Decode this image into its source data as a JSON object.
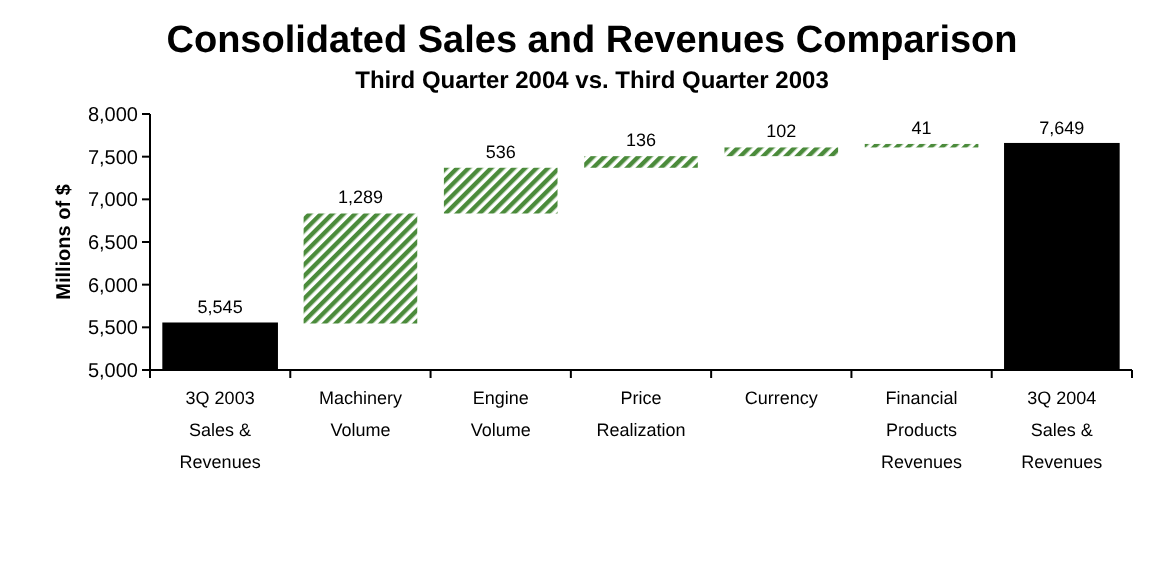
{
  "chart_data": {
    "type": "bar",
    "title": "Consolidated Sales and Revenues Comparison",
    "subtitle": "Third Quarter 2004 vs. Third Quarter 2003",
    "ylabel": "Millions of $",
    "categories": [
      "3Q 2003 Sales & Revenues",
      "Machinery Volume",
      "Engine Volume",
      "Price Realization",
      "Currency",
      "Financial Products Revenues",
      "3Q 2004 Sales & Revenues"
    ],
    "values": [
      5545,
      1289,
      536,
      136,
      102,
      41,
      7649
    ],
    "base": [
      null,
      5545,
      6834,
      7370,
      7506,
      7608,
      null
    ],
    "colors": [
      "#000000",
      "#4b8b3b",
      "#4b8b3b",
      "#4b8b3b",
      "#4b8b3b",
      "#4b8b3b",
      "#000000"
    ],
    "ylim": [
      5000,
      8000
    ],
    "yticks": [
      {
        "value": 5000,
        "label": "5,000"
      },
      {
        "value": 5500,
        "label": "5,500"
      },
      {
        "value": 6000,
        "label": "6,000"
      },
      {
        "value": 6500,
        "label": "6,500"
      },
      {
        "value": 7000,
        "label": "7,000"
      },
      {
        "value": 7500,
        "label": "7,500"
      },
      {
        "value": 8000,
        "label": "8,000"
      }
    ],
    "value_labels": [
      "5,545",
      "1,289",
      "536",
      "136",
      "102",
      "41",
      "7,649"
    ],
    "grid": false
  }
}
